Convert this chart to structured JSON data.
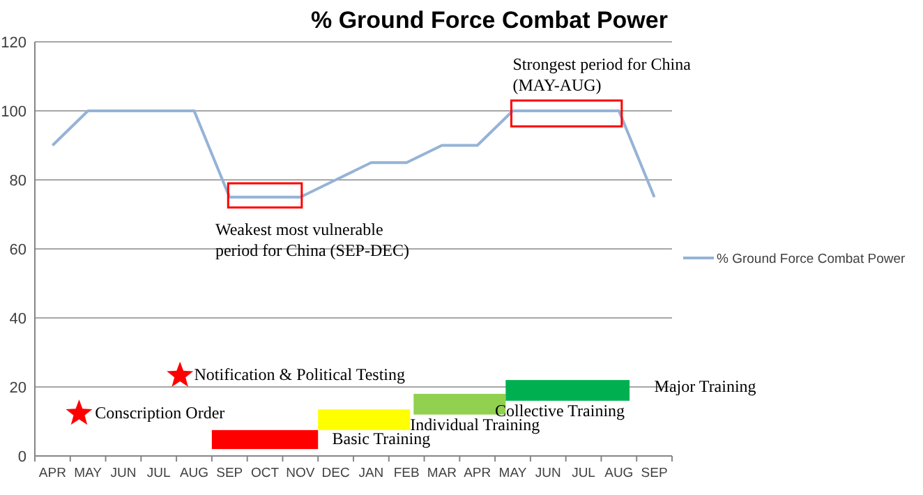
{
  "chart_data": {
    "type": "line",
    "title": "% Ground Force Combat Power",
    "categories": [
      "APR",
      "MAY",
      "JUN",
      "JUL",
      "AUG",
      "SEP",
      "OCT",
      "NOV",
      "DEC",
      "JAN",
      "FEB",
      "MAR",
      "APR",
      "MAY",
      "JUN",
      "JUL",
      "AUG",
      "SEP"
    ],
    "series": [
      {
        "name": "% Ground Force Combat Power",
        "color": "#95b3d7",
        "values": [
          90,
          100,
          100,
          100,
          100,
          75,
          75,
          75,
          80,
          85,
          85,
          90,
          90,
          100,
          100,
          100,
          100,
          75
        ]
      }
    ],
    "ylim": [
      0,
      120
    ],
    "yticks": [
      0,
      20,
      40,
      60,
      80,
      100,
      120
    ],
    "grid": "y",
    "legend": "right",
    "marker": "none",
    "annotations": [
      "Strongest period for China (MAY-AUG)",
      "Weakest most vulnerable period for China (SEP-DEC)",
      "Notification & Political Testing",
      "Conscription Order",
      "Basic Training",
      "Individual Training",
      "Collective Training",
      "Major Training"
    ]
  }
}
